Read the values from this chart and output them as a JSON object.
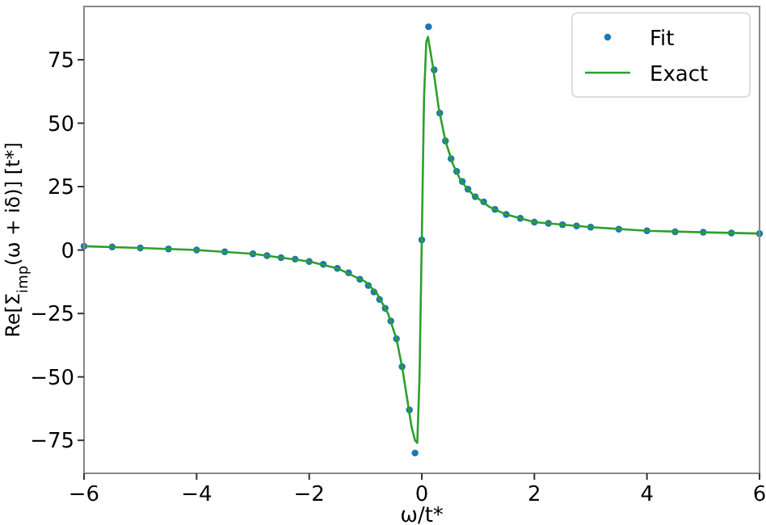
{
  "chart_data": {
    "type": "line",
    "xlabel": "ω/t*",
    "ylabel": "Re[Σ$_{imp}$(ω + iδ)] [t*]",
    "xlim": [
      -6,
      6
    ],
    "ylim": [
      -88,
      96
    ],
    "xticks": [
      {
        "value": -6,
        "label": "−6"
      },
      {
        "value": -4,
        "label": "−4"
      },
      {
        "value": -2,
        "label": "−2"
      },
      0,
      2,
      4,
      6
    ],
    "yticks": [
      {
        "value": -75,
        "label": "−75"
      },
      {
        "value": -50,
        "label": "−50"
      },
      {
        "value": -25,
        "label": "−25"
      },
      0,
      25,
      50,
      75
    ],
    "legend": "top right",
    "series": [
      {
        "name": "Fit",
        "type": "scatter",
        "marker": "circle",
        "color": "#1f77b4",
        "x": [
          -6,
          -5.5,
          -5,
          -4.5,
          -4,
          -3.5,
          -3,
          -2.75,
          -2.5,
          -2.25,
          -2,
          -1.75,
          -1.5,
          -1.3,
          -1.1,
          -0.95,
          -0.85,
          -0.75,
          -0.65,
          -0.55,
          -0.45,
          -0.35,
          -0.22,
          -0.12,
          0,
          0.12,
          0.22,
          0.32,
          0.42,
          0.52,
          0.62,
          0.72,
          0.82,
          0.95,
          1.1,
          1.3,
          1.5,
          1.75,
          2,
          2.25,
          2.5,
          2.75,
          3,
          3.5,
          4,
          4.5,
          5,
          5.5,
          6
        ],
        "values": [
          1.5,
          1.2,
          0.8,
          0.4,
          0,
          -0.7,
          -1.5,
          -2.2,
          -3,
          -3.6,
          -4.5,
          -5.6,
          -7.2,
          -9,
          -11.5,
          -14,
          -16.5,
          -19.5,
          -23,
          -28,
          -35,
          -46,
          -63,
          -80,
          4,
          88,
          71,
          54,
          43,
          36,
          31,
          27,
          24,
          21,
          19,
          16,
          14,
          12.5,
          11,
          10.5,
          10,
          9.5,
          9,
          8.2,
          7.6,
          7.2,
          7,
          6.7,
          6.5
        ]
      },
      {
        "name": "Exact",
        "color": "#2ca02c",
        "x": [
          -6,
          -5,
          -4,
          -3,
          -2,
          -1.5,
          -1,
          -0.8,
          -0.6,
          -0.45,
          -0.35,
          -0.25,
          -0.18,
          -0.12,
          -0.08,
          -0.04,
          0,
          0.04,
          0.08,
          0.11,
          0.14,
          0.2,
          0.3,
          0.42,
          0.55,
          0.7,
          0.9,
          1.2,
          1.5,
          2,
          3,
          4,
          5,
          6
        ],
        "values": [
          1.5,
          0.8,
          0,
          -1.5,
          -4.5,
          -7.2,
          -12.5,
          -17,
          -25,
          -35,
          -46,
          -60,
          -70,
          -75,
          -76,
          -50,
          4,
          60,
          82,
          84,
          80,
          72,
          56,
          43,
          34,
          27,
          22,
          17,
          14,
          11,
          9,
          7.6,
          7,
          6.5
        ]
      }
    ]
  }
}
